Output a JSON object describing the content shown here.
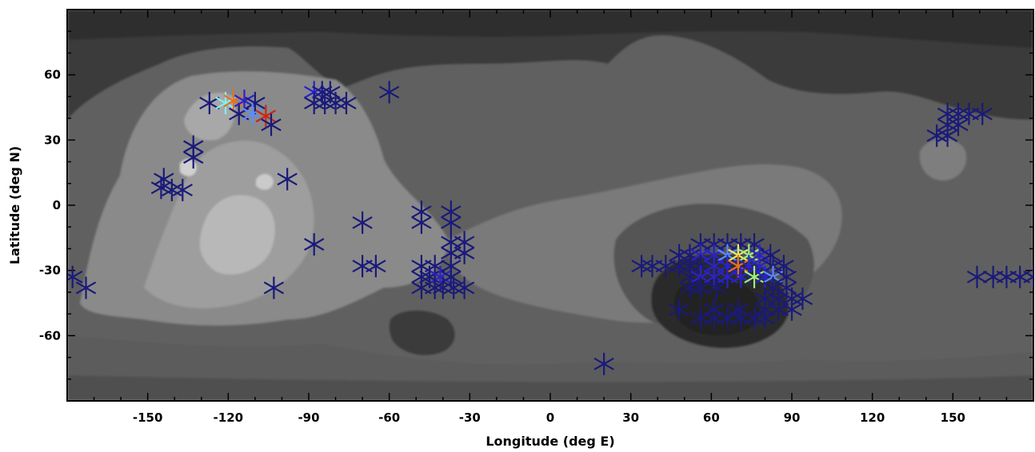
{
  "chart_data": {
    "type": "scatter",
    "title": "",
    "xlabel": "Longitude (deg E)",
    "ylabel": "Latitude (deg N)",
    "xlim": [
      -180,
      180
    ],
    "ylim": [
      -90,
      90
    ],
    "x_ticks": [
      -150,
      -120,
      -90,
      -60,
      -30,
      0,
      30,
      60,
      90,
      120,
      150
    ],
    "y_ticks": [
      -60,
      -30,
      0,
      30,
      60
    ],
    "marker": "asterisk",
    "grid": false,
    "legend": "none",
    "background": "grayscale contour map of topography",
    "colors": {
      "dark_blue": "#1a1a7a",
      "blue": "#2a22cc",
      "light_blue": "#5b8cff",
      "cyan": "#7ff0ee",
      "green": "#9cf07a",
      "yellow": "#e8e860",
      "orange": "#e87020",
      "red": "#c82818"
    },
    "points": [
      [
        -178,
        -33,
        "dark_blue"
      ],
      [
        -173,
        -38,
        "dark_blue"
      ],
      [
        -144,
        12,
        "dark_blue"
      ],
      [
        -145,
        8,
        "dark_blue"
      ],
      [
        -141,
        7,
        "dark_blue"
      ],
      [
        -137,
        7,
        "dark_blue"
      ],
      [
        -133,
        27,
        "dark_blue"
      ],
      [
        -133,
        22,
        "dark_blue"
      ],
      [
        -127,
        47,
        "dark_blue"
      ],
      [
        -121,
        47,
        "cyan"
      ],
      [
        -118,
        48,
        "orange"
      ],
      [
        -116,
        42,
        "dark_blue"
      ],
      [
        -114,
        48,
        "blue"
      ],
      [
        -110,
        47,
        "dark_blue"
      ],
      [
        -111,
        42,
        "light_blue"
      ],
      [
        -106,
        41,
        "red"
      ],
      [
        -104,
        37,
        "dark_blue"
      ],
      [
        -98,
        12,
        "dark_blue"
      ],
      [
        -88,
        52,
        "blue"
      ],
      [
        -85,
        52,
        "dark_blue"
      ],
      [
        -82,
        52,
        "dark_blue"
      ],
      [
        -88,
        47,
        "dark_blue"
      ],
      [
        -84,
        47,
        "dark_blue"
      ],
      [
        -80,
        47,
        "dark_blue"
      ],
      [
        -76,
        47,
        "dark_blue"
      ],
      [
        -60,
        52,
        "dark_blue"
      ],
      [
        -70,
        -8,
        "dark_blue"
      ],
      [
        -88,
        -18,
        "dark_blue"
      ],
      [
        -70,
        -28,
        "dark_blue"
      ],
      [
        -65,
        -28,
        "dark_blue"
      ],
      [
        -103,
        -38,
        "dark_blue"
      ],
      [
        -48,
        -3,
        "dark_blue"
      ],
      [
        -48,
        -8,
        "dark_blue"
      ],
      [
        -37,
        -3,
        "dark_blue"
      ],
      [
        -37,
        -8,
        "dark_blue"
      ],
      [
        -37,
        -17,
        "dark_blue"
      ],
      [
        -32,
        -17,
        "dark_blue"
      ],
      [
        -37,
        -22,
        "dark_blue"
      ],
      [
        -32,
        -22,
        "dark_blue"
      ],
      [
        -48,
        -28,
        "dark_blue"
      ],
      [
        -43,
        -28,
        "dark_blue"
      ],
      [
        -37,
        -28,
        "dark_blue"
      ],
      [
        -48,
        -33,
        "dark_blue"
      ],
      [
        -45,
        -33,
        "dark_blue"
      ],
      [
        -41,
        -33,
        "blue"
      ],
      [
        -37,
        -33,
        "dark_blue"
      ],
      [
        -48,
        -38,
        "dark_blue"
      ],
      [
        -43,
        -38,
        "dark_blue"
      ],
      [
        -40,
        -38,
        "dark_blue"
      ],
      [
        -36,
        -38,
        "dark_blue"
      ],
      [
        -32,
        -38,
        "dark_blue"
      ],
      [
        20,
        -73,
        "dark_blue"
      ],
      [
        34,
        -28,
        "dark_blue"
      ],
      [
        38,
        -28,
        "dark_blue"
      ],
      [
        43,
        -28,
        "dark_blue"
      ],
      [
        48,
        -23,
        "dark_blue"
      ],
      [
        52,
        -23,
        "dark_blue"
      ],
      [
        48,
        -28,
        "dark_blue"
      ],
      [
        52,
        -28,
        "dark_blue"
      ],
      [
        56,
        -18,
        "dark_blue"
      ],
      [
        61,
        -18,
        "dark_blue"
      ],
      [
        66,
        -18,
        "dark_blue"
      ],
      [
        71,
        -18,
        "dark_blue"
      ],
      [
        76,
        -18,
        "dark_blue"
      ],
      [
        56,
        -23,
        "blue"
      ],
      [
        61,
        -23,
        "blue"
      ],
      [
        66,
        -23,
        "light_blue"
      ],
      [
        70,
        -23,
        "yellow"
      ],
      [
        74,
        -23,
        "green"
      ],
      [
        78,
        -23,
        "blue"
      ],
      [
        82,
        -23,
        "dark_blue"
      ],
      [
        56,
        -28,
        "dark_blue"
      ],
      [
        61,
        -28,
        "blue"
      ],
      [
        66,
        -28,
        "blue"
      ],
      [
        70,
        -28,
        "orange"
      ],
      [
        74,
        -28,
        "blue"
      ],
      [
        78,
        -28,
        "blue"
      ],
      [
        83,
        -28,
        "dark_blue"
      ],
      [
        87,
        -28,
        "dark_blue"
      ],
      [
        52,
        -33,
        "dark_blue"
      ],
      [
        56,
        -33,
        "blue"
      ],
      [
        61,
        -33,
        "blue"
      ],
      [
        66,
        -33,
        "blue"
      ],
      [
        71,
        -33,
        "blue"
      ],
      [
        76,
        -33,
        "green"
      ],
      [
        80,
        -33,
        "blue"
      ],
      [
        83,
        -33,
        "light_blue"
      ],
      [
        88,
        -33,
        "dark_blue"
      ],
      [
        52,
        -38,
        "dark_blue"
      ],
      [
        56,
        -38,
        "dark_blue"
      ],
      [
        62,
        -38,
        "dark_blue"
      ],
      [
        83,
        -38,
        "dark_blue"
      ],
      [
        88,
        -38,
        "dark_blue"
      ],
      [
        80,
        -43,
        "dark_blue"
      ],
      [
        85,
        -43,
        "dark_blue"
      ],
      [
        90,
        -43,
        "dark_blue"
      ],
      [
        94,
        -43,
        "dark_blue"
      ],
      [
        48,
        -48,
        "dark_blue"
      ],
      [
        61,
        -48,
        "dark_blue"
      ],
      [
        70,
        -48,
        "dark_blue"
      ],
      [
        80,
        -48,
        "dark_blue"
      ],
      [
        85,
        -48,
        "dark_blue"
      ],
      [
        90,
        -48,
        "dark_blue"
      ],
      [
        56,
        -52,
        "dark_blue"
      ],
      [
        61,
        -52,
        "dark_blue"
      ],
      [
        66,
        -52,
        "dark_blue"
      ],
      [
        71,
        -52,
        "dark_blue"
      ],
      [
        76,
        -52,
        "dark_blue"
      ],
      [
        80,
        -52,
        "dark_blue"
      ],
      [
        144,
        32,
        "dark_blue"
      ],
      [
        148,
        32,
        "dark_blue"
      ],
      [
        148,
        37,
        "dark_blue"
      ],
      [
        152,
        37,
        "dark_blue"
      ],
      [
        148,
        42,
        "dark_blue"
      ],
      [
        152,
        42,
        "dark_blue"
      ],
      [
        156,
        42,
        "dark_blue"
      ],
      [
        161,
        42,
        "dark_blue"
      ],
      [
        159,
        -33,
        "dark_blue"
      ],
      [
        165,
        -33,
        "dark_blue"
      ],
      [
        170,
        -33,
        "dark_blue"
      ],
      [
        175,
        -33,
        "dark_blue"
      ],
      [
        180,
        -33,
        "dark_blue"
      ]
    ]
  }
}
